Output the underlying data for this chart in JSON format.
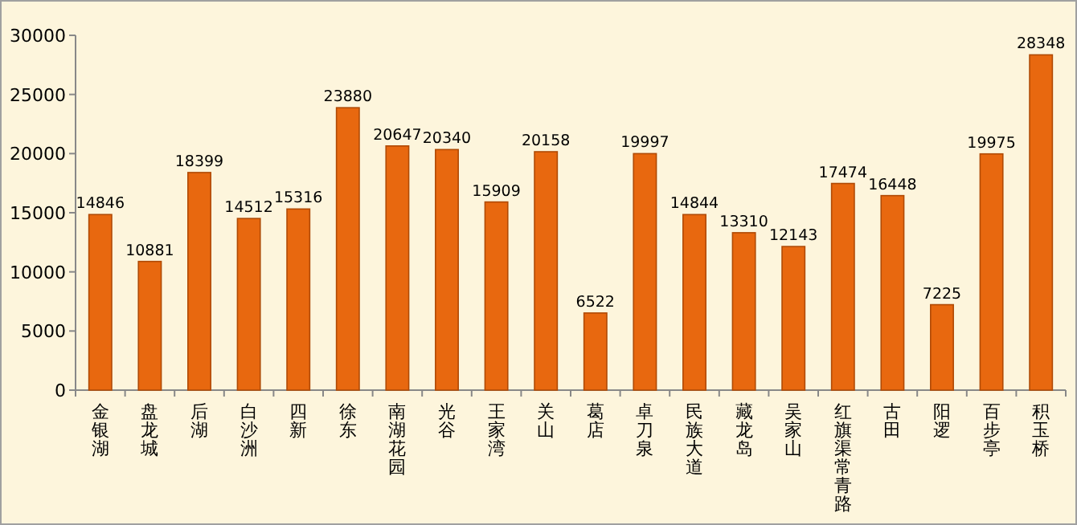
{
  "chart_data": {
    "type": "bar",
    "categories": [
      "金银湖",
      "盘龙城",
      "后湖",
      "白沙洲",
      "四新",
      "徐东",
      "南湖花园",
      "光谷",
      "王家湾",
      "关山",
      "葛店",
      "卓刀泉",
      "民族大道",
      "藏龙岛",
      "吴家山",
      "红旗渠常青路",
      "古田",
      "阳逻",
      "百步亭",
      "积玉桥"
    ],
    "values": [
      14846,
      10881,
      18399,
      14512,
      15316,
      23880,
      20647,
      20340,
      15909,
      20158,
      6522,
      19997,
      14844,
      13310,
      12143,
      17474,
      16448,
      7225,
      19975,
      28348
    ],
    "color": "#e8680f",
    "ylim": [
      0,
      30000
    ],
    "yticks": [
      0,
      5000,
      10000,
      15000,
      20000,
      25000,
      30000
    ],
    "data_labels": true,
    "grid": false
  }
}
